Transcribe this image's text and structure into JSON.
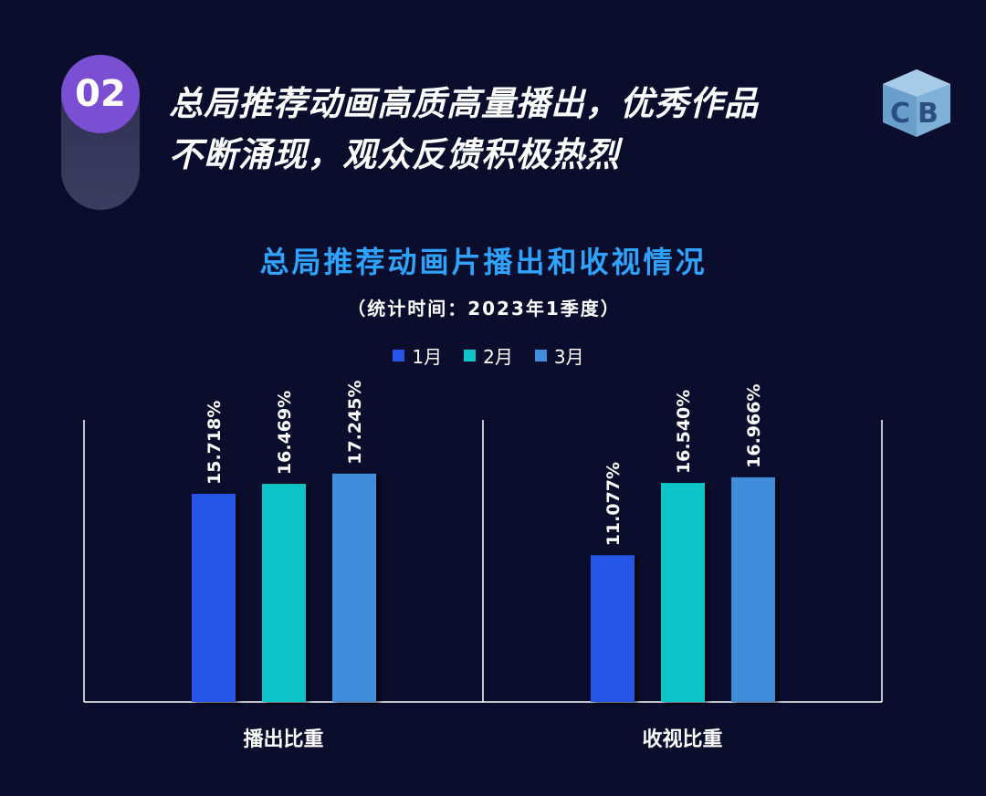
{
  "badge": {
    "number": "02"
  },
  "headline": {
    "lines": [
      "总局推荐动画高质高量播出，优秀作品",
      "不断涌现，观众反馈积极热烈"
    ]
  },
  "logo": {
    "icon": "cb-cube-logo-icon"
  },
  "colors": {
    "m1": "#2556e8",
    "m2": "#0ec4c8",
    "m3": "#3f8ddb",
    "axis": "#ffffff",
    "title": "#2fa3ff"
  },
  "chart_data": {
    "type": "bar",
    "title": "总局推荐动画片播出和收视情况",
    "subtitle": "（统计时间：2023年1季度）",
    "categories": [
      "播出比重",
      "收视比重"
    ],
    "series": [
      {
        "name": "1月",
        "values": [
          15.718,
          11.077
        ],
        "labels": [
          "15.718%",
          "11.077%"
        ]
      },
      {
        "name": "2月",
        "values": [
          16.469,
          16.54
        ],
        "labels": [
          "16.469%",
          "16.540%"
        ]
      },
      {
        "name": "3月",
        "values": [
          17.245,
          16.966
        ],
        "labels": [
          "17.245%",
          "16.966%"
        ]
      }
    ],
    "ylim": [
      0,
      21.3
    ],
    "grid": false,
    "legend_position": "top"
  }
}
